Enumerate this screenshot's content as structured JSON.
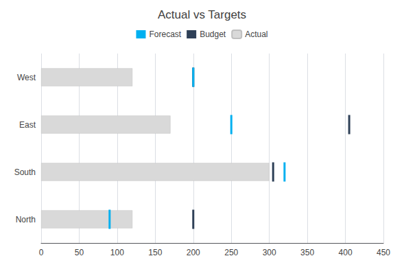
{
  "chart_data": {
    "type": "bar",
    "orientation": "horizontal",
    "title": "Actual vs Targets",
    "categories": [
      "West",
      "East",
      "South",
      "North"
    ],
    "series": [
      {
        "name": "Forecast",
        "type": "scatter",
        "marker": "rect",
        "color": "#00b0f0",
        "values": [
          200,
          250,
          320,
          90
        ]
      },
      {
        "name": "Budget",
        "type": "scatter",
        "marker": "rect",
        "color": "#2e4057",
        "values": [
          200,
          405,
          305,
          200
        ]
      },
      {
        "name": "Actual",
        "type": "bar",
        "color": "#d9d9d9",
        "values": [
          120,
          170,
          300,
          120
        ]
      }
    ],
    "xlim": [
      0,
      450
    ],
    "xticks": [
      0,
      50,
      100,
      150,
      200,
      250,
      300,
      350,
      400,
      450
    ],
    "grid": true,
    "legend": "upper center"
  }
}
